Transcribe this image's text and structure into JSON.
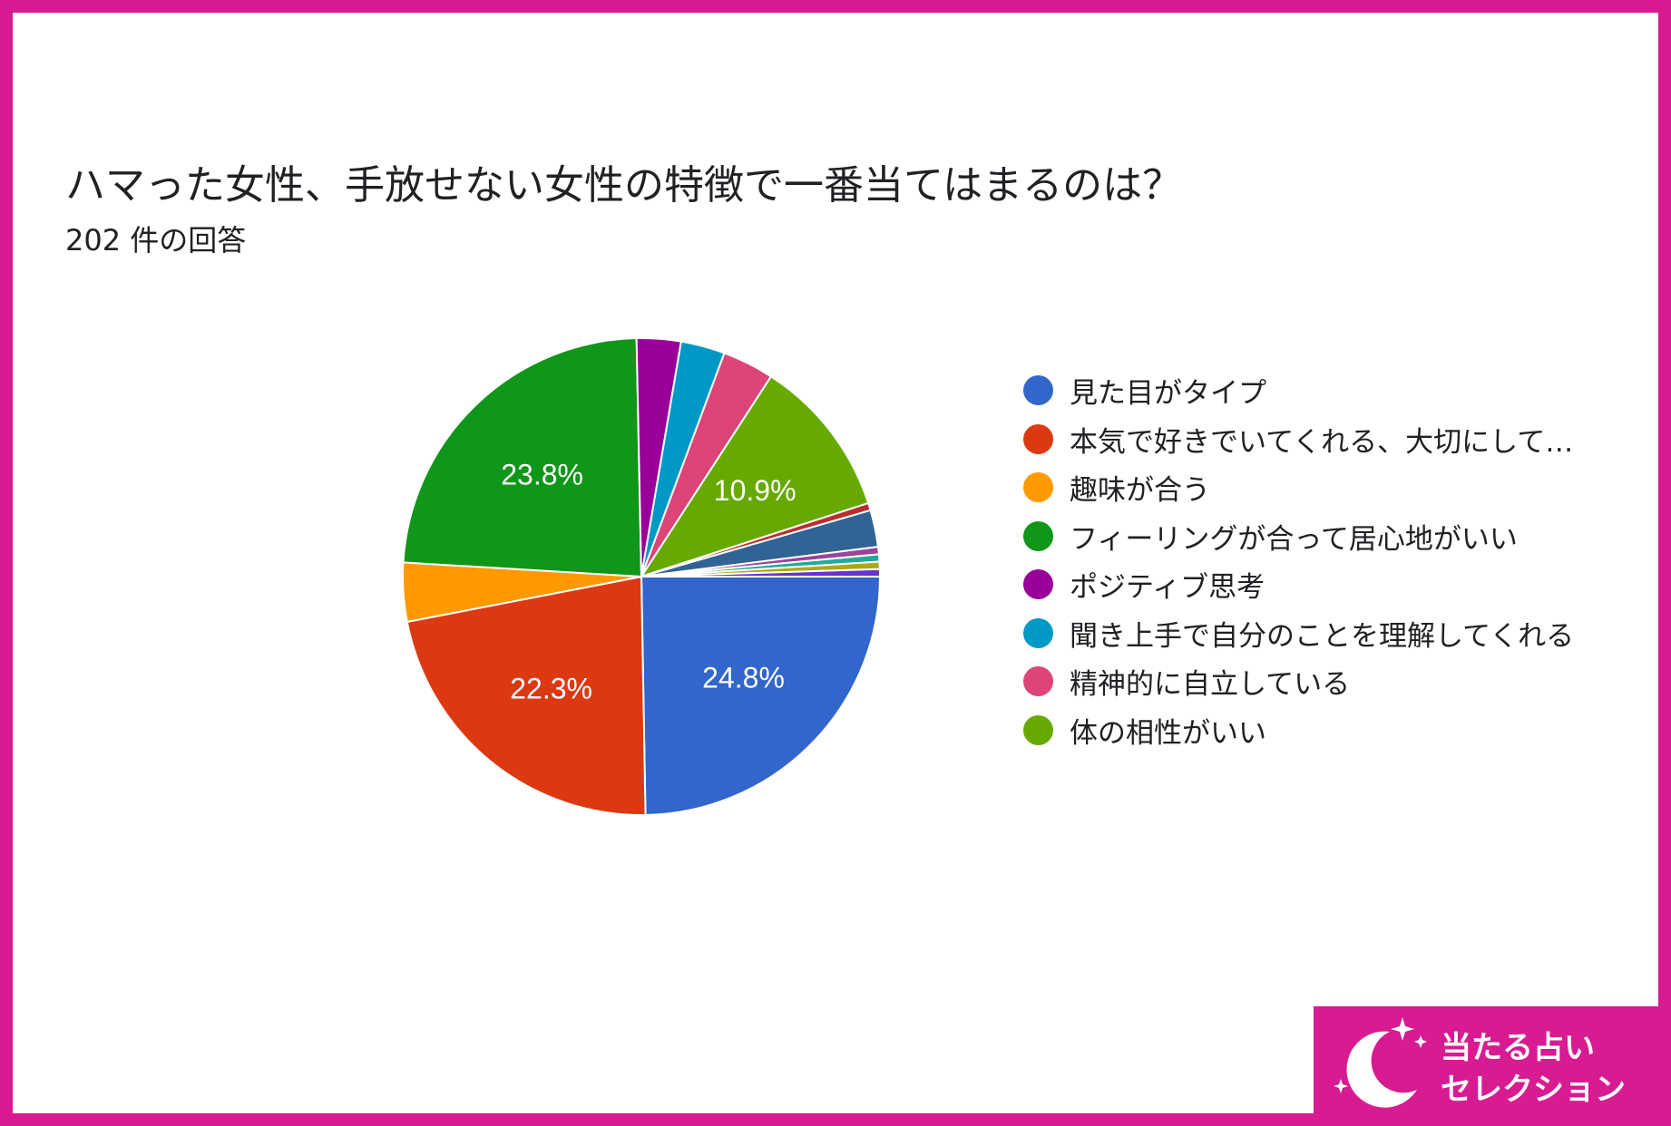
{
  "title": "ハマった女性、手放せない女性の特徴で一番当てはまるのは？",
  "subtitle": "202 件の回答",
  "chart_data": {
    "type": "pie",
    "title": "ハマった女性、手放せない女性の特徴で一番当てはまるのは？",
    "subtitle": "202 件の回答",
    "slices": [
      {
        "label": "見た目がタイプ",
        "value": 24.8,
        "color": "#3366cc",
        "show_label": true
      },
      {
        "label": "本気で好きでいてくれる、大切にして…",
        "value": 22.3,
        "color": "#dc3912",
        "show_label": true
      },
      {
        "label": "趣味が合う",
        "value": 4.0,
        "color": "#ff9900",
        "show_label": false
      },
      {
        "label": "フィーリングが合って居心地がいい",
        "value": 23.8,
        "color": "#109618",
        "show_label": true
      },
      {
        "label": "ポジティブ思考",
        "value": 3.0,
        "color": "#990099",
        "show_label": false
      },
      {
        "label": "聞き上手で自分のことを理解してくれる",
        "value": 3.0,
        "color": "#0099c6",
        "show_label": false
      },
      {
        "label": "精神的に自立している",
        "value": 3.5,
        "color": "#dd4477",
        "show_label": false
      },
      {
        "label": "体の相性がいい",
        "value": 10.9,
        "color": "#66aa00",
        "show_label": true
      },
      {
        "label": "",
        "value": 0.5,
        "color": "#b82e2e",
        "show_label": false
      },
      {
        "label": "",
        "value": 2.5,
        "color": "#316395",
        "show_label": false
      },
      {
        "label": "",
        "value": 0.5,
        "color": "#994499",
        "show_label": false
      },
      {
        "label": "",
        "value": 0.5,
        "color": "#22aa99",
        "show_label": false
      },
      {
        "label": "",
        "value": 0.5,
        "color": "#aaaa11",
        "show_label": false
      },
      {
        "label": "",
        "value": 0.5,
        "color": "#6633cc",
        "show_label": false
      }
    ],
    "legend_position": "right",
    "value_labels": [
      "24.8%",
      "22.3%",
      "23.8%",
      "10.9%"
    ]
  },
  "legend": [
    {
      "label": "見た目がタイプ",
      "color": "#3366cc"
    },
    {
      "label": "本気で好きでいてくれる、大切にして…",
      "color": "#dc3912"
    },
    {
      "label": "趣味が合う",
      "color": "#ff9900"
    },
    {
      "label": "フィーリングが合って居心地がいい",
      "color": "#109618"
    },
    {
      "label": "ポジティブ思考",
      "color": "#990099"
    },
    {
      "label": "聞き上手で自分のことを理解してくれる",
      "color": "#0099c6"
    },
    {
      "label": "精神的に自立している",
      "color": "#dd4477"
    },
    {
      "label": "体の相性がいい",
      "color": "#66aa00"
    }
  ],
  "brand": {
    "line1": "当たる占い",
    "line2": "セレクション",
    "icon": "crescent-moon-stars-icon"
  },
  "colors": {
    "frame": "#d81b91",
    "brand_bg": "#d81b91",
    "text": "#202124"
  }
}
